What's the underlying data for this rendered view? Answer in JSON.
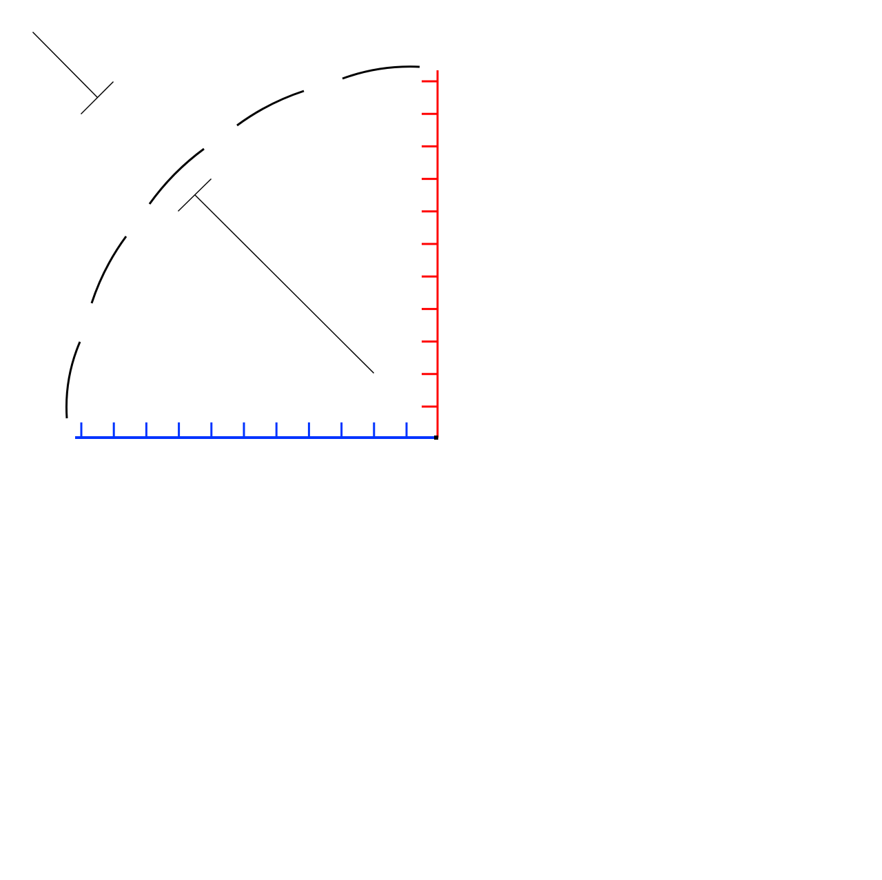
{
  "diagram": {
    "colors": {
      "background": "#ffffff",
      "arc": "#000000",
      "measure_lines": "#000000",
      "horizontal_axis": "#0033ff",
      "vertical_axis": "#ff0000",
      "corner": "#000000"
    },
    "horizontal_axis": {
      "tick_count": 11
    },
    "vertical_axis": {
      "tick_count": 11
    },
    "arc": {
      "style": "dashed"
    },
    "measure_lines": {
      "count": 2
    }
  }
}
